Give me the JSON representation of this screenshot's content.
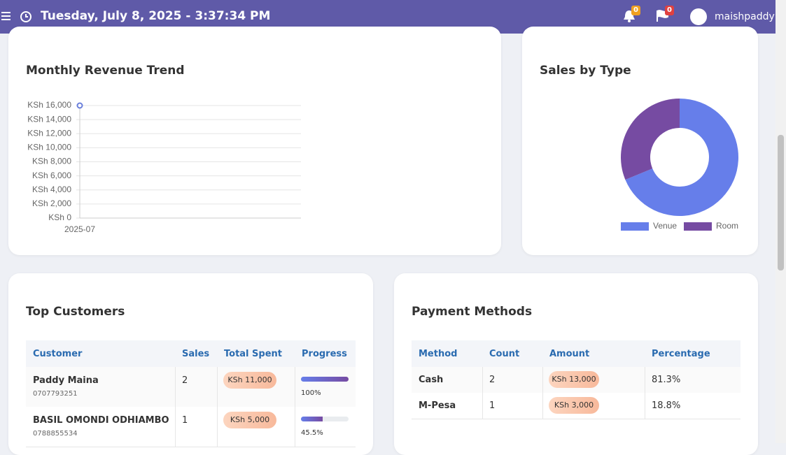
{
  "header": {
    "datetime": "Tuesday, July 8, 2025 - 3:37:34 PM",
    "notifications": "0",
    "messages": "0",
    "user": "maishpaddy"
  },
  "chart_data": [
    {
      "type": "line",
      "title": "Monthly Revenue Trend",
      "x": [
        "2025-07"
      ],
      "values": [
        16000
      ],
      "color": "#6a7fdb",
      "ylim": [
        0,
        16000
      ],
      "yticks": [
        {
          "value": 0,
          "label": "KSh 0"
        },
        {
          "value": 2000,
          "label": "KSh 2,000"
        },
        {
          "value": 4000,
          "label": "KSh 4,000"
        },
        {
          "value": 6000,
          "label": "KSh 6,000"
        },
        {
          "value": 8000,
          "label": "KSh 8,000"
        },
        {
          "value": 10000,
          "label": "KSh 10,000"
        },
        {
          "value": 12000,
          "label": "KSh 12,000"
        },
        {
          "value": 14000,
          "label": "KSh 14,000"
        },
        {
          "value": 16000,
          "label": "KSh 16,000"
        }
      ],
      "grid": true
    },
    {
      "type": "donut",
      "title": "Sales by Type",
      "categories": [
        "Venue",
        "Room"
      ],
      "values": [
        11000,
        5000
      ],
      "colors": [
        "#667eea",
        "#764ba2"
      ],
      "legend": "bottom"
    }
  ],
  "top_customers": {
    "title": "Top Customers",
    "columns": [
      "Customer",
      "Sales",
      "Total Spent",
      "Progress"
    ],
    "rows": [
      {
        "name": "Paddy Maina",
        "phone": "0707793251",
        "sales": "2",
        "total": "KSh 11,000",
        "progress": 100,
        "progress_label": "100%"
      },
      {
        "name": "BASIL OMONDI ODHIAMBO",
        "phone": "0788855534",
        "sales": "1",
        "total": "KSh 5,000",
        "progress": 45.5,
        "progress_label": "45.5%"
      }
    ]
  },
  "payment_methods": {
    "title": "Payment Methods",
    "columns": [
      "Method",
      "Count",
      "Amount",
      "Percentage"
    ],
    "rows": [
      [
        "Cash",
        "2",
        "KSh 13,000",
        "81.3%"
      ],
      [
        "M-Pesa",
        "1",
        "KSh 3,000",
        "18.8%"
      ]
    ]
  }
}
